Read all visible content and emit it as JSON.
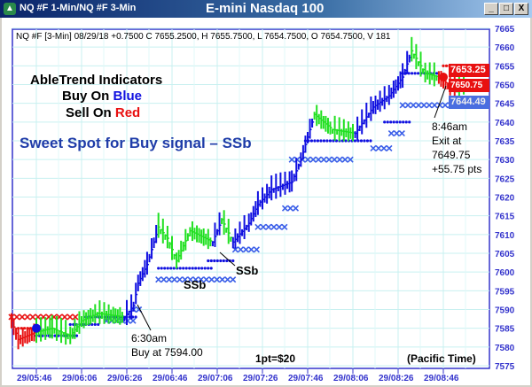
{
  "window": {
    "icon": "chart-app-icon",
    "left_title": "NQ #F 1-Min/NQ #F 3-Min",
    "center_title": "E-mini Nasdaq 100",
    "buttons": {
      "minimize": "_",
      "maximize": "□",
      "close": "X"
    }
  },
  "header_line": "NQ #F [3-Min] 08/29/18  +0.7500 C 7655.2500, H 7655.7500, L 7654.7500, O 7654.7500, V 181",
  "annotations": {
    "title1": "AbleTrend Indicators",
    "buy": "Buy On ",
    "buy_word": "Blue",
    "sell": "Sell On ",
    "sell_word": "Red",
    "sweet": "Sweet Spot for Buy signal – SSb",
    "ssb1": "SSb",
    "ssb2": "SSb",
    "entry_time": "6:30am",
    "entry_price": "Buy at 7594.00",
    "exit_time": "8:46am",
    "exit_label": "Exit at",
    "exit_price": "7649.75",
    "exit_pts": "+55.75 pts",
    "point_value": "1pt=$20",
    "timezone": "(Pacific Time)"
  },
  "price_tags": {
    "last": "7653.25",
    "prev": "7650.75",
    "stop": "7644.49",
    "last_color": "#e81010",
    "stop_color": "#4a6ee0"
  },
  "chart_data": {
    "type": "bar",
    "ylim": [
      7575,
      7665
    ],
    "yticks": [
      7665,
      7660,
      7655,
      7650,
      7645,
      7640,
      7635,
      7630,
      7625,
      7620,
      7615,
      7610,
      7605,
      7600,
      7595,
      7590,
      7585,
      7580,
      7575
    ],
    "xticks": [
      "29/05:46",
      "29/06:06",
      "29/06:26",
      "29/06:46",
      "29/07:06",
      "29/07:26",
      "29/07:46",
      "29/08:06",
      "29/08:26",
      "29/08:46"
    ],
    "grid": true,
    "colors": {
      "up": "#1010e0",
      "down": "#e81010",
      "neutral": "#20e020",
      "axis": "#3333cc"
    },
    "price_path": [
      [
        "05:35",
        7587,
        "red"
      ],
      [
        "05:38",
        7582,
        "red"
      ],
      [
        "05:46",
        7584,
        "red"
      ],
      [
        "05:53",
        7585,
        "green"
      ],
      [
        "06:01",
        7583,
        "green"
      ],
      [
        "06:06",
        7587,
        "green"
      ],
      [
        "06:13",
        7589,
        "green"
      ],
      [
        "06:25",
        7588,
        "green"
      ],
      [
        "06:29",
        7591,
        "blue"
      ],
      [
        "06:31",
        7597,
        "blue"
      ],
      [
        "06:35",
        7602,
        "blue"
      ],
      [
        "06:40",
        7612,
        "blue"
      ],
      [
        "06:44",
        7609,
        "green"
      ],
      [
        "06:48",
        7603,
        "green"
      ],
      [
        "06:54",
        7611,
        "green"
      ],
      [
        "07:04",
        7608,
        "green"
      ],
      [
        "07:08",
        7614,
        "blue"
      ],
      [
        "07:13",
        7608,
        "green"
      ],
      [
        "07:20",
        7613,
        "blue"
      ],
      [
        "07:24",
        7618,
        "blue"
      ],
      [
        "07:30",
        7622,
        "blue"
      ],
      [
        "07:39",
        7624,
        "blue"
      ],
      [
        "07:43",
        7630,
        "blue"
      ],
      [
        "07:49",
        7642,
        "blue"
      ],
      [
        "07:57",
        7638,
        "green"
      ],
      [
        "08:07",
        7637,
        "green"
      ],
      [
        "08:15",
        7644,
        "blue"
      ],
      [
        "08:22",
        7647,
        "blue"
      ],
      [
        "08:28",
        7652,
        "blue"
      ],
      [
        "08:32",
        7659,
        "blue"
      ],
      [
        "08:38",
        7653,
        "green"
      ],
      [
        "08:44",
        7652,
        "green"
      ],
      [
        "08:48",
        7650,
        "red"
      ],
      [
        "08:52",
        7649,
        "red"
      ],
      [
        "08:57",
        7651,
        "green"
      ]
    ],
    "stops": [
      [
        "05:35",
        "06:05",
        7588,
        "red",
        "x"
      ],
      [
        "05:38",
        "05:47",
        7585,
        "red",
        "dot"
      ],
      [
        "05:46",
        "06:05",
        7583,
        "blue",
        "dot"
      ],
      [
        "06:01",
        "06:14",
        7586,
        "blue",
        "dot"
      ],
      [
        "06:08",
        "06:31",
        7588,
        "blue",
        "dot"
      ],
      [
        "06:17",
        "06:30",
        7587,
        "blue",
        "x"
      ],
      [
        "06:29",
        "06:32",
        7590,
        "blue",
        "x"
      ],
      [
        "06:40",
        "07:04",
        7601,
        "blue",
        "dot"
      ],
      [
        "06:40",
        "07:14",
        7598,
        "blue",
        "x"
      ],
      [
        "07:02",
        "07:14",
        7603,
        "blue",
        "dot"
      ],
      [
        "07:14",
        "07:24",
        7606,
        "blue",
        "x"
      ],
      [
        "07:24",
        "07:36",
        7612,
        "blue",
        "x"
      ],
      [
        "07:36",
        "07:42",
        7617,
        "blue",
        "x"
      ],
      [
        "07:39",
        "08:07",
        7630,
        "blue",
        "x"
      ],
      [
        "07:45",
        "08:15",
        7635,
        "blue",
        "dot"
      ],
      [
        "08:15",
        "08:23",
        7633,
        "blue",
        "x"
      ],
      [
        "08:20",
        "08:31",
        7640,
        "blue",
        "dot"
      ],
      [
        "08:23",
        "08:30",
        7637,
        "blue",
        "x"
      ],
      [
        "08:28",
        "08:57",
        7644.5,
        "blue",
        "x"
      ],
      [
        "08:28",
        "08:44",
        7653,
        "blue",
        "dot"
      ],
      [
        "08:46",
        "08:58",
        7655,
        "red",
        "dot"
      ]
    ],
    "signals": [
      [
        "05:46",
        7585,
        "blue"
      ],
      [
        "08:46",
        7652,
        "red"
      ]
    ]
  }
}
